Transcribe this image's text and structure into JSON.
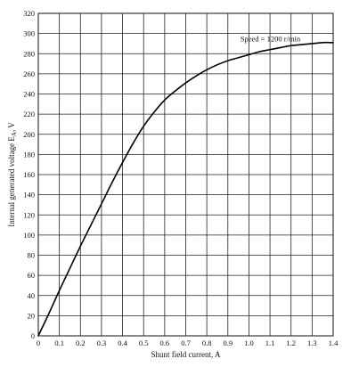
{
  "chart_data": {
    "type": "line",
    "title": "",
    "xlabel": "Shunt field current, A",
    "ylabel_main": "Internal generated voltage E",
    "ylabel_sub": "A",
    "ylabel_unit": ", V",
    "xlim": [
      0,
      1.4
    ],
    "ylim": [
      0,
      320
    ],
    "x_ticks": [
      0,
      0.1,
      0.2,
      0.3,
      0.4,
      0.5,
      0.6,
      0.7,
      0.8,
      0.9,
      1.0,
      1.1,
      1.2,
      1.3,
      1.4
    ],
    "x_tick_labels": [
      "0",
      "0.1",
      "0.2",
      "0.3",
      "0.4",
      "0.5",
      "0.6",
      "0.7",
      "0.8",
      "0.9",
      "1.0",
      "1.1",
      "1.2",
      "1.3",
      "1.4"
    ],
    "y_ticks": [
      0,
      20,
      40,
      60,
      80,
      100,
      120,
      140,
      160,
      180,
      200,
      220,
      240,
      260,
      280,
      300,
      320
    ],
    "y_tick_labels": [
      "0",
      "20",
      "40",
      "60",
      "80",
      "100",
      "120",
      "140",
      "160",
      "180",
      "200",
      "220",
      "240",
      "260",
      "280",
      "300",
      "320"
    ],
    "grid": true,
    "annotation": {
      "text": "Speed = 1200 r/min",
      "x": 1.11,
      "y": 293
    },
    "series": [
      {
        "x": [
          0,
          0.05,
          0.1,
          0.15,
          0.2,
          0.25,
          0.3,
          0.35,
          0.4,
          0.45,
          0.5,
          0.55,
          0.6,
          0.65,
          0.7,
          0.75,
          0.8,
          0.85,
          0.9,
          0.95,
          1.0,
          1.05,
          1.1,
          1.15,
          1.2,
          1.25,
          1.3,
          1.35,
          1.4
        ],
        "y": [
          0,
          22,
          45,
          67,
          89,
          110,
          131,
          152,
          172,
          191,
          208,
          222,
          234,
          243,
          251,
          258,
          264,
          269,
          273,
          276,
          279,
          282,
          284,
          286,
          288,
          289,
          290,
          291,
          291
        ]
      }
    ]
  }
}
